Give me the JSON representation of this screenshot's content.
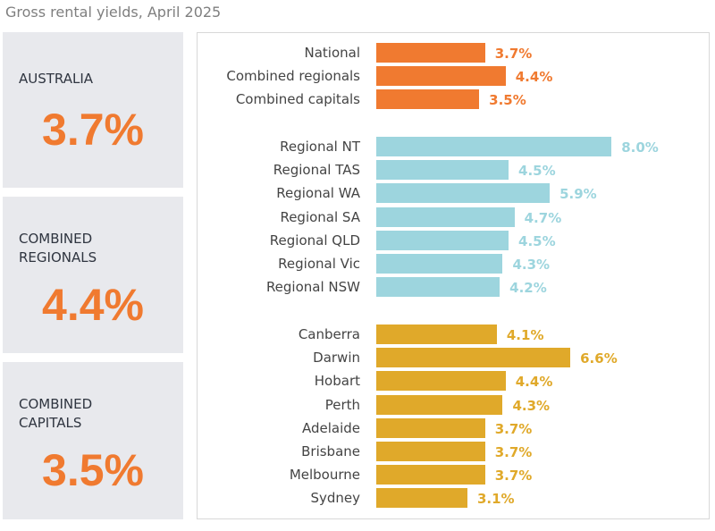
{
  "title": "Gross rental yields, April 2025",
  "panels": [
    {
      "label": "AUSTRALIA",
      "value": "3.7%"
    },
    {
      "label": "COMBINED\nREGIONALS",
      "value": "4.4%"
    },
    {
      "label": "COMBINED\nCAPITALS",
      "value": "3.5%"
    }
  ],
  "colors": {
    "summary": "#f07a30",
    "regional": "#9dd5de",
    "capitals": "#e0a92a",
    "panel_bg": "#e8e9ed"
  },
  "chart_data": {
    "type": "bar",
    "orientation": "horizontal",
    "unit": "%",
    "groups": [
      {
        "color": "#f07a30",
        "categories": [
          "National",
          "Combined regionals",
          "Combined capitals"
        ],
        "values": [
          3.7,
          4.4,
          3.5
        ],
        "labels": [
          "3.7%",
          "4.4%",
          "3.5%"
        ]
      },
      {
        "color": "#9dd5de",
        "categories": [
          "Regional NT",
          "Regional TAS",
          "Regional WA",
          "Regional SA",
          "Regional QLD",
          "Regional Vic",
          "Regional NSW"
        ],
        "values": [
          8.0,
          4.5,
          5.9,
          4.7,
          4.5,
          4.3,
          4.2
        ],
        "labels": [
          "8.0%",
          "4.5%",
          "5.9%",
          "4.7%",
          "4.5%",
          "4.3%",
          "4.2%"
        ]
      },
      {
        "color": "#e0a92a",
        "categories": [
          "Canberra",
          "Darwin",
          "Hobart",
          "Perth",
          "Adelaide",
          "Brisbane",
          "Melbourne",
          "Sydney"
        ],
        "values": [
          4.1,
          6.6,
          4.4,
          4.3,
          3.7,
          3.7,
          3.7,
          3.1
        ],
        "labels": [
          "4.1%",
          "6.6%",
          "4.4%",
          "4.3%",
          "3.7%",
          "3.7%",
          "3.7%",
          "3.1%"
        ]
      }
    ],
    "grid": false,
    "legend": "none"
  }
}
